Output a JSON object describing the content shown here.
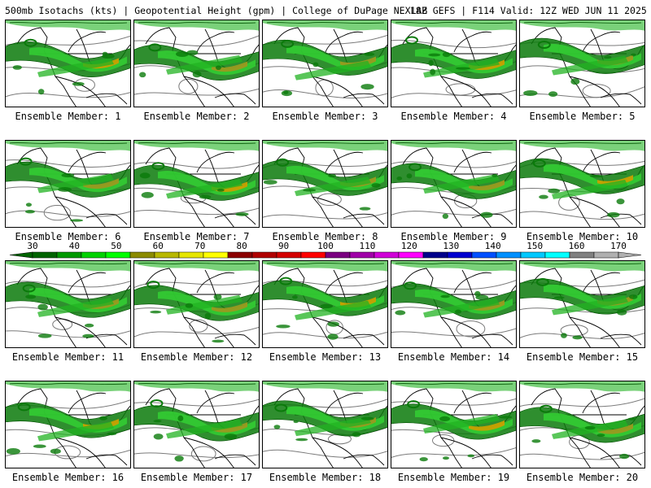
{
  "header": {
    "title_left": "500mb Isotachs (kts) | Geopotential Height (gpm) | College of DuPage NEXLAB",
    "title_right": "18Z GEFS | F114 Valid: 12Z WED JUN 11 2025"
  },
  "panels": [
    {
      "caption": "Ensemble Member: 1"
    },
    {
      "caption": "Ensemble Member: 2"
    },
    {
      "caption": "Ensemble Member: 3"
    },
    {
      "caption": "Ensemble Member: 4"
    },
    {
      "caption": "Ensemble Member: 5"
    },
    {
      "caption": "Ensemble Member: 6"
    },
    {
      "caption": "Ensemble Member: 7"
    },
    {
      "caption": "Ensemble Member: 8"
    },
    {
      "caption": "Ensemble Member: 9"
    },
    {
      "caption": "Ensemble Member: 10"
    },
    {
      "caption": "Ensemble Member: 11"
    },
    {
      "caption": "Ensemble Member: 12"
    },
    {
      "caption": "Ensemble Member: 13"
    },
    {
      "caption": "Ensemble Member: 14"
    },
    {
      "caption": "Ensemble Member: 15"
    },
    {
      "caption": "Ensemble Member: 16"
    },
    {
      "caption": "Ensemble Member: 17"
    },
    {
      "caption": "Ensemble Member: 18"
    },
    {
      "caption": "Ensemble Member: 19"
    },
    {
      "caption": "Ensemble Member: 20"
    }
  ],
  "colorbar": {
    "labels": [
      "30",
      "40",
      "50",
      "60",
      "70",
      "80",
      "90",
      "100",
      "110",
      "120",
      "130",
      "140",
      "150",
      "160",
      "170"
    ],
    "colors": [
      "#006400",
      "#009a00",
      "#00d200",
      "#00ff00",
      "#8b8b00",
      "#b8b800",
      "#e6e600",
      "#ffff00",
      "#8b0000",
      "#b00000",
      "#d40000",
      "#ff0000",
      "#7a0080",
      "#a000a8",
      "#d000d8",
      "#ff00ff",
      "#00008b",
      "#0000d0",
      "#0050ff",
      "#0090ff",
      "#00c8ff",
      "#00ffff",
      "#808080",
      "#b0b0b0"
    ]
  },
  "map_colors": {
    "jet_dark": "#0a7a0a",
    "jet_mid": "#22b322",
    "jet_light": "#33cc33",
    "core": "#9a9a20",
    "core_hot": "#c9a000",
    "coast": "#000000",
    "height_contour": "#7a7a7a"
  }
}
